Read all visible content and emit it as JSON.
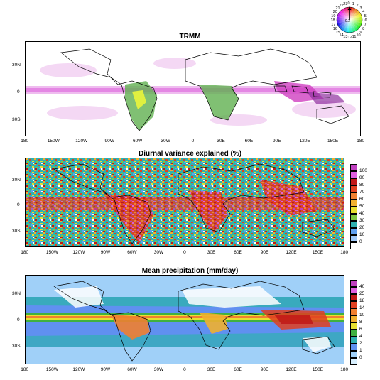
{
  "panels": [
    {
      "id": "trmm",
      "title": "TRMM"
    },
    {
      "id": "variance",
      "title": "Diurnal variance explained (%)"
    },
    {
      "id": "precip",
      "title": "Mean precipitation (mm/day)"
    }
  ],
  "lat_labels": [
    "30N",
    "0",
    "30S"
  ],
  "lon_labels": [
    "180",
    "150W",
    "120W",
    "90W",
    "60W",
    "30W",
    "0",
    "30E",
    "60E",
    "90E",
    "120E",
    "150E",
    "180"
  ],
  "colorbar_variance": {
    "levels": [
      "100",
      "90",
      "80",
      "70",
      "60",
      "50",
      "40",
      "30",
      "20",
      "10",
      "0"
    ],
    "colors": [
      "#c040c0",
      "#e060e0",
      "#c01818",
      "#e04020",
      "#f08030",
      "#f0b030",
      "#e8e030",
      "#80c840",
      "#30b0b0",
      "#60a0f0",
      "#a0c8f8",
      "#ffffff"
    ]
  },
  "colorbar_precip": {
    "levels": [
      "40",
      "25",
      "18",
      "14",
      "10",
      "8",
      "6",
      "4",
      "2",
      "1",
      "0"
    ],
    "colors": [
      "#c040c0",
      "#e060e0",
      "#c01818",
      "#e04020",
      "#f08030",
      "#f0b030",
      "#e8e030",
      "#40b040",
      "#30b0b0",
      "#6090f0",
      "#a0d0f8",
      "#d8f0ff"
    ]
  },
  "clock_wheel": {
    "hours": [
      "22",
      "23",
      "0",
      "1",
      "2",
      "3",
      "4",
      "5",
      "6",
      "7",
      "8",
      "9",
      "10",
      "11",
      "12",
      "13",
      "14",
      "15",
      "16",
      "17",
      "18",
      "19",
      "20",
      "21"
    ],
    "center_label": "0.3"
  }
}
